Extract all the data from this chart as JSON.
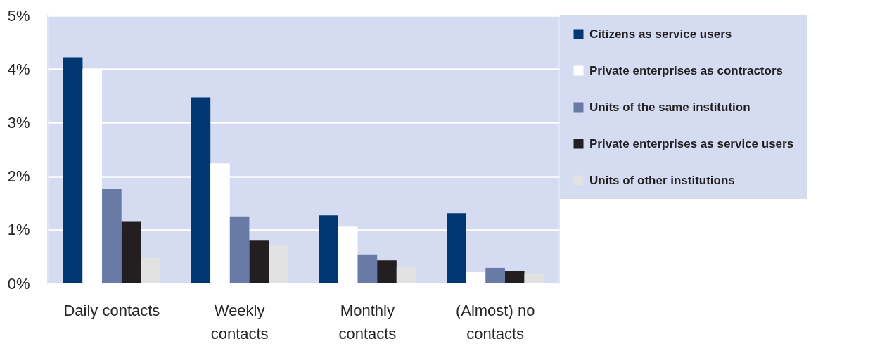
{
  "chart_data": {
    "type": "bar",
    "categories": [
      "Daily contacts",
      "Weekly contacts",
      "Monthly contacts",
      "(Almost) no contacts"
    ],
    "series": [
      {
        "name": "Citizens as service users",
        "color": "#003873",
        "values": [
          4.22,
          3.47,
          1.27,
          1.31
        ]
      },
      {
        "name": "Private enterprises as contractors",
        "color": "#ffffff",
        "values": [
          4.0,
          2.24,
          1.06,
          0.21
        ]
      },
      {
        "name": "Units of the same institution",
        "color": "#6a7aa6",
        "values": [
          1.76,
          1.25,
          0.54,
          0.29
        ]
      },
      {
        "name": "Private enterprises as service users",
        "color": "#231f20",
        "values": [
          1.16,
          0.81,
          0.43,
          0.23
        ]
      },
      {
        "name": "Units of other institutions",
        "color": "#e2e2e2",
        "values": [
          0.48,
          0.72,
          0.31,
          0.19
        ]
      }
    ],
    "ylim": [
      0,
      5
    ],
    "yticks": [
      {
        "value": 0,
        "label": "0%"
      },
      {
        "value": 1,
        "label": "1%"
      },
      {
        "value": 2,
        "label": "2%"
      },
      {
        "value": 3,
        "label": "3%"
      },
      {
        "value": 4,
        "label": "4%"
      },
      {
        "value": 5,
        "label": "5%"
      }
    ],
    "grid": "y",
    "legend": "right"
  }
}
